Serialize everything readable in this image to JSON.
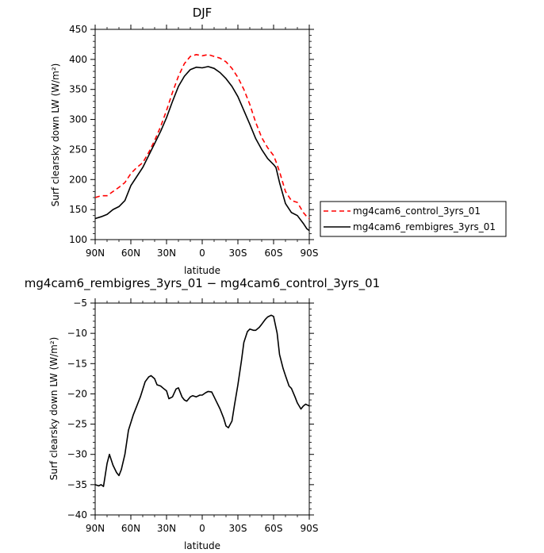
{
  "chart_data": [
    {
      "type": "line",
      "title": "DJF",
      "xlabel": "latitude",
      "ylabel": "Surf clearsky down LW (W/m²)",
      "xlim": [
        90,
        -90
      ],
      "ylim": [
        100,
        450
      ],
      "x_ticks": [
        {
          "value": 90,
          "label": "90N"
        },
        {
          "value": 60,
          "label": "60N"
        },
        {
          "value": 30,
          "label": "30N"
        },
        {
          "value": 0,
          "label": "0"
        },
        {
          "value": -30,
          "label": "30S"
        },
        {
          "value": -60,
          "label": "60S"
        },
        {
          "value": -90,
          "label": "90S"
        }
      ],
      "y_ticks": [
        100,
        150,
        200,
        250,
        300,
        350,
        400,
        450
      ],
      "legend_position": "right",
      "series": [
        {
          "name": "mg4cam6_control_3yrs_01",
          "color": "#ff0000",
          "dash": "dashed",
          "x": [
            90,
            85,
            80,
            75,
            70,
            65,
            60,
            55,
            50,
            45,
            40,
            35,
            30,
            25,
            20,
            15,
            10,
            5,
            0,
            -5,
            -10,
            -15,
            -20,
            -25,
            -30,
            -35,
            -40,
            -45,
            -50,
            -55,
            -60,
            -62,
            -65,
            -70,
            -75,
            -80,
            -85,
            -88,
            -90
          ],
          "values": [
            170,
            173,
            173,
            180,
            187,
            195,
            210,
            220,
            228,
            245,
            265,
            288,
            315,
            345,
            372,
            393,
            405,
            408,
            406,
            408,
            405,
            402,
            396,
            385,
            370,
            350,
            325,
            295,
            270,
            253,
            240,
            230,
            213,
            180,
            165,
            162,
            145,
            138,
            135
          ]
        },
        {
          "name": "mg4cam6_rembigres_3yrs_01",
          "color": "#000000",
          "dash": "solid",
          "x": [
            90,
            85,
            80,
            75,
            70,
            65,
            60,
            55,
            50,
            45,
            40,
            35,
            30,
            25,
            20,
            15,
            10,
            5,
            0,
            -5,
            -10,
            -15,
            -20,
            -25,
            -30,
            -35,
            -40,
            -45,
            -50,
            -55,
            -60,
            -62,
            -65,
            -70,
            -75,
            -80,
            -85,
            -88,
            -90
          ],
          "values": [
            135,
            138,
            142,
            150,
            155,
            165,
            190,
            205,
            220,
            240,
            260,
            280,
            303,
            330,
            355,
            372,
            383,
            387,
            386,
            388,
            385,
            378,
            368,
            355,
            338,
            315,
            292,
            268,
            250,
            235,
            225,
            220,
            195,
            160,
            145,
            140,
            127,
            118,
            115
          ]
        }
      ]
    },
    {
      "type": "line",
      "title": "mg4cam6_rembigres_3yrs_01 − mg4cam6_control_3yrs_01",
      "xlabel": "latitude",
      "ylabel": "Surf clearsky down LW (W/m²)",
      "xlim": [
        90,
        -90
      ],
      "ylim": [
        -40,
        -5
      ],
      "x_ticks": [
        {
          "value": 90,
          "label": "90N"
        },
        {
          "value": 60,
          "label": "60N"
        },
        {
          "value": 30,
          "label": "30N"
        },
        {
          "value": 0,
          "label": "0"
        },
        {
          "value": -30,
          "label": "30S"
        },
        {
          "value": -60,
          "label": "60S"
        },
        {
          "value": -90,
          "label": "90S"
        }
      ],
      "y_ticks": [
        -40,
        -35,
        -30,
        -25,
        -20,
        -15,
        -10,
        -5
      ],
      "series": [
        {
          "color": "#000000",
          "x": [
            90,
            87,
            85,
            83,
            80,
            78,
            75,
            72,
            70,
            68,
            65,
            62,
            58,
            55,
            52,
            48,
            45,
            43,
            40,
            38,
            35,
            32,
            30,
            28,
            25,
            22,
            20,
            17,
            15,
            13,
            10,
            8,
            5,
            2,
            0,
            -3,
            -5,
            -8,
            -10,
            -12,
            -15,
            -18,
            -20,
            -22,
            -25,
            -27,
            -30,
            -33,
            -35,
            -38,
            -40,
            -43,
            -45,
            -48,
            -50,
            -53,
            -55,
            -58,
            -60,
            -63,
            -65,
            -68,
            -70,
            -73,
            -75,
            -78,
            -80,
            -83,
            -85,
            -87,
            -88,
            -90
          ],
          "values": [
            -35,
            -35.2,
            -35,
            -35.3,
            -31.5,
            -30,
            -31.8,
            -33,
            -33.5,
            -32.5,
            -30,
            -26,
            -23.5,
            -22,
            -20.5,
            -18,
            -17.2,
            -17,
            -17.5,
            -18.5,
            -18.7,
            -19.2,
            -19.5,
            -20.8,
            -20.5,
            -19.2,
            -19,
            -20.5,
            -21,
            -21.2,
            -20.5,
            -20.3,
            -20.5,
            -20.2,
            -20.2,
            -19.8,
            -19.6,
            -19.7,
            -20.5,
            -21.3,
            -22.5,
            -24,
            -25.3,
            -25.6,
            -24.5,
            -22,
            -18.5,
            -14.5,
            -11.5,
            -9.7,
            -9.3,
            -9.5,
            -9.5,
            -9,
            -8.5,
            -7.7,
            -7.3,
            -7,
            -7.2,
            -10,
            -13.5,
            -15.8,
            -17,
            -18.7,
            -19.1,
            -20.5,
            -21.5,
            -22.5,
            -22,
            -21.7,
            -21.8,
            -22
          ]
        }
      ]
    }
  ]
}
